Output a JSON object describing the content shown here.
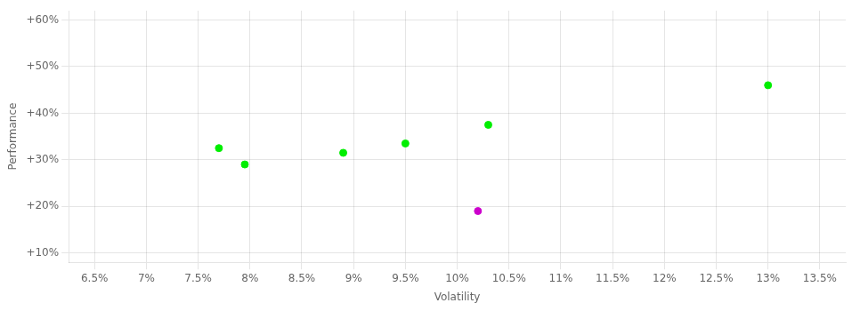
{
  "chart_data": {
    "type": "scatter",
    "xlabel": "Volatility",
    "ylabel": "Performance",
    "series": [
      {
        "color": "#00ee00",
        "x": [
          7.7,
          7.95,
          8.9,
          9.5,
          10.3,
          13.0
        ],
        "values": [
          32.5,
          29.0,
          31.5,
          33.5,
          37.5,
          46.0
        ]
      },
      {
        "color": "#cc00cc",
        "x": [
          10.2
        ],
        "values": [
          19.0
        ]
      }
    ],
    "xlim": [
      6.25,
      13.75
    ],
    "ylim": [
      8,
      62
    ],
    "xticks": [
      {
        "value": 6.5,
        "label": "6.5%"
      },
      {
        "value": 7.0,
        "label": "7%"
      },
      {
        "value": 7.5,
        "label": "7.5%"
      },
      {
        "value": 8.0,
        "label": "8%"
      },
      {
        "value": 8.5,
        "label": "8.5%"
      },
      {
        "value": 9.0,
        "label": "9%"
      },
      {
        "value": 9.5,
        "label": "9.5%"
      },
      {
        "value": 10.0,
        "label": "10%"
      },
      {
        "value": 10.5,
        "label": "10.5%"
      },
      {
        "value": 11.0,
        "label": "11%"
      },
      {
        "value": 11.5,
        "label": "11.5%"
      },
      {
        "value": 12.0,
        "label": "12%"
      },
      {
        "value": 12.5,
        "label": "12.5%"
      },
      {
        "value": 13.0,
        "label": "13%"
      },
      {
        "value": 13.5,
        "label": "13.5%"
      }
    ],
    "yticks": [
      {
        "value": 10,
        "label": "+10%"
      },
      {
        "value": 20,
        "label": "+20%"
      },
      {
        "value": 30,
        "label": "+30%"
      },
      {
        "value": 40,
        "label": "+40%"
      },
      {
        "value": 50,
        "label": "+50%"
      },
      {
        "value": 60,
        "label": "+60%"
      }
    ],
    "grid": true
  }
}
